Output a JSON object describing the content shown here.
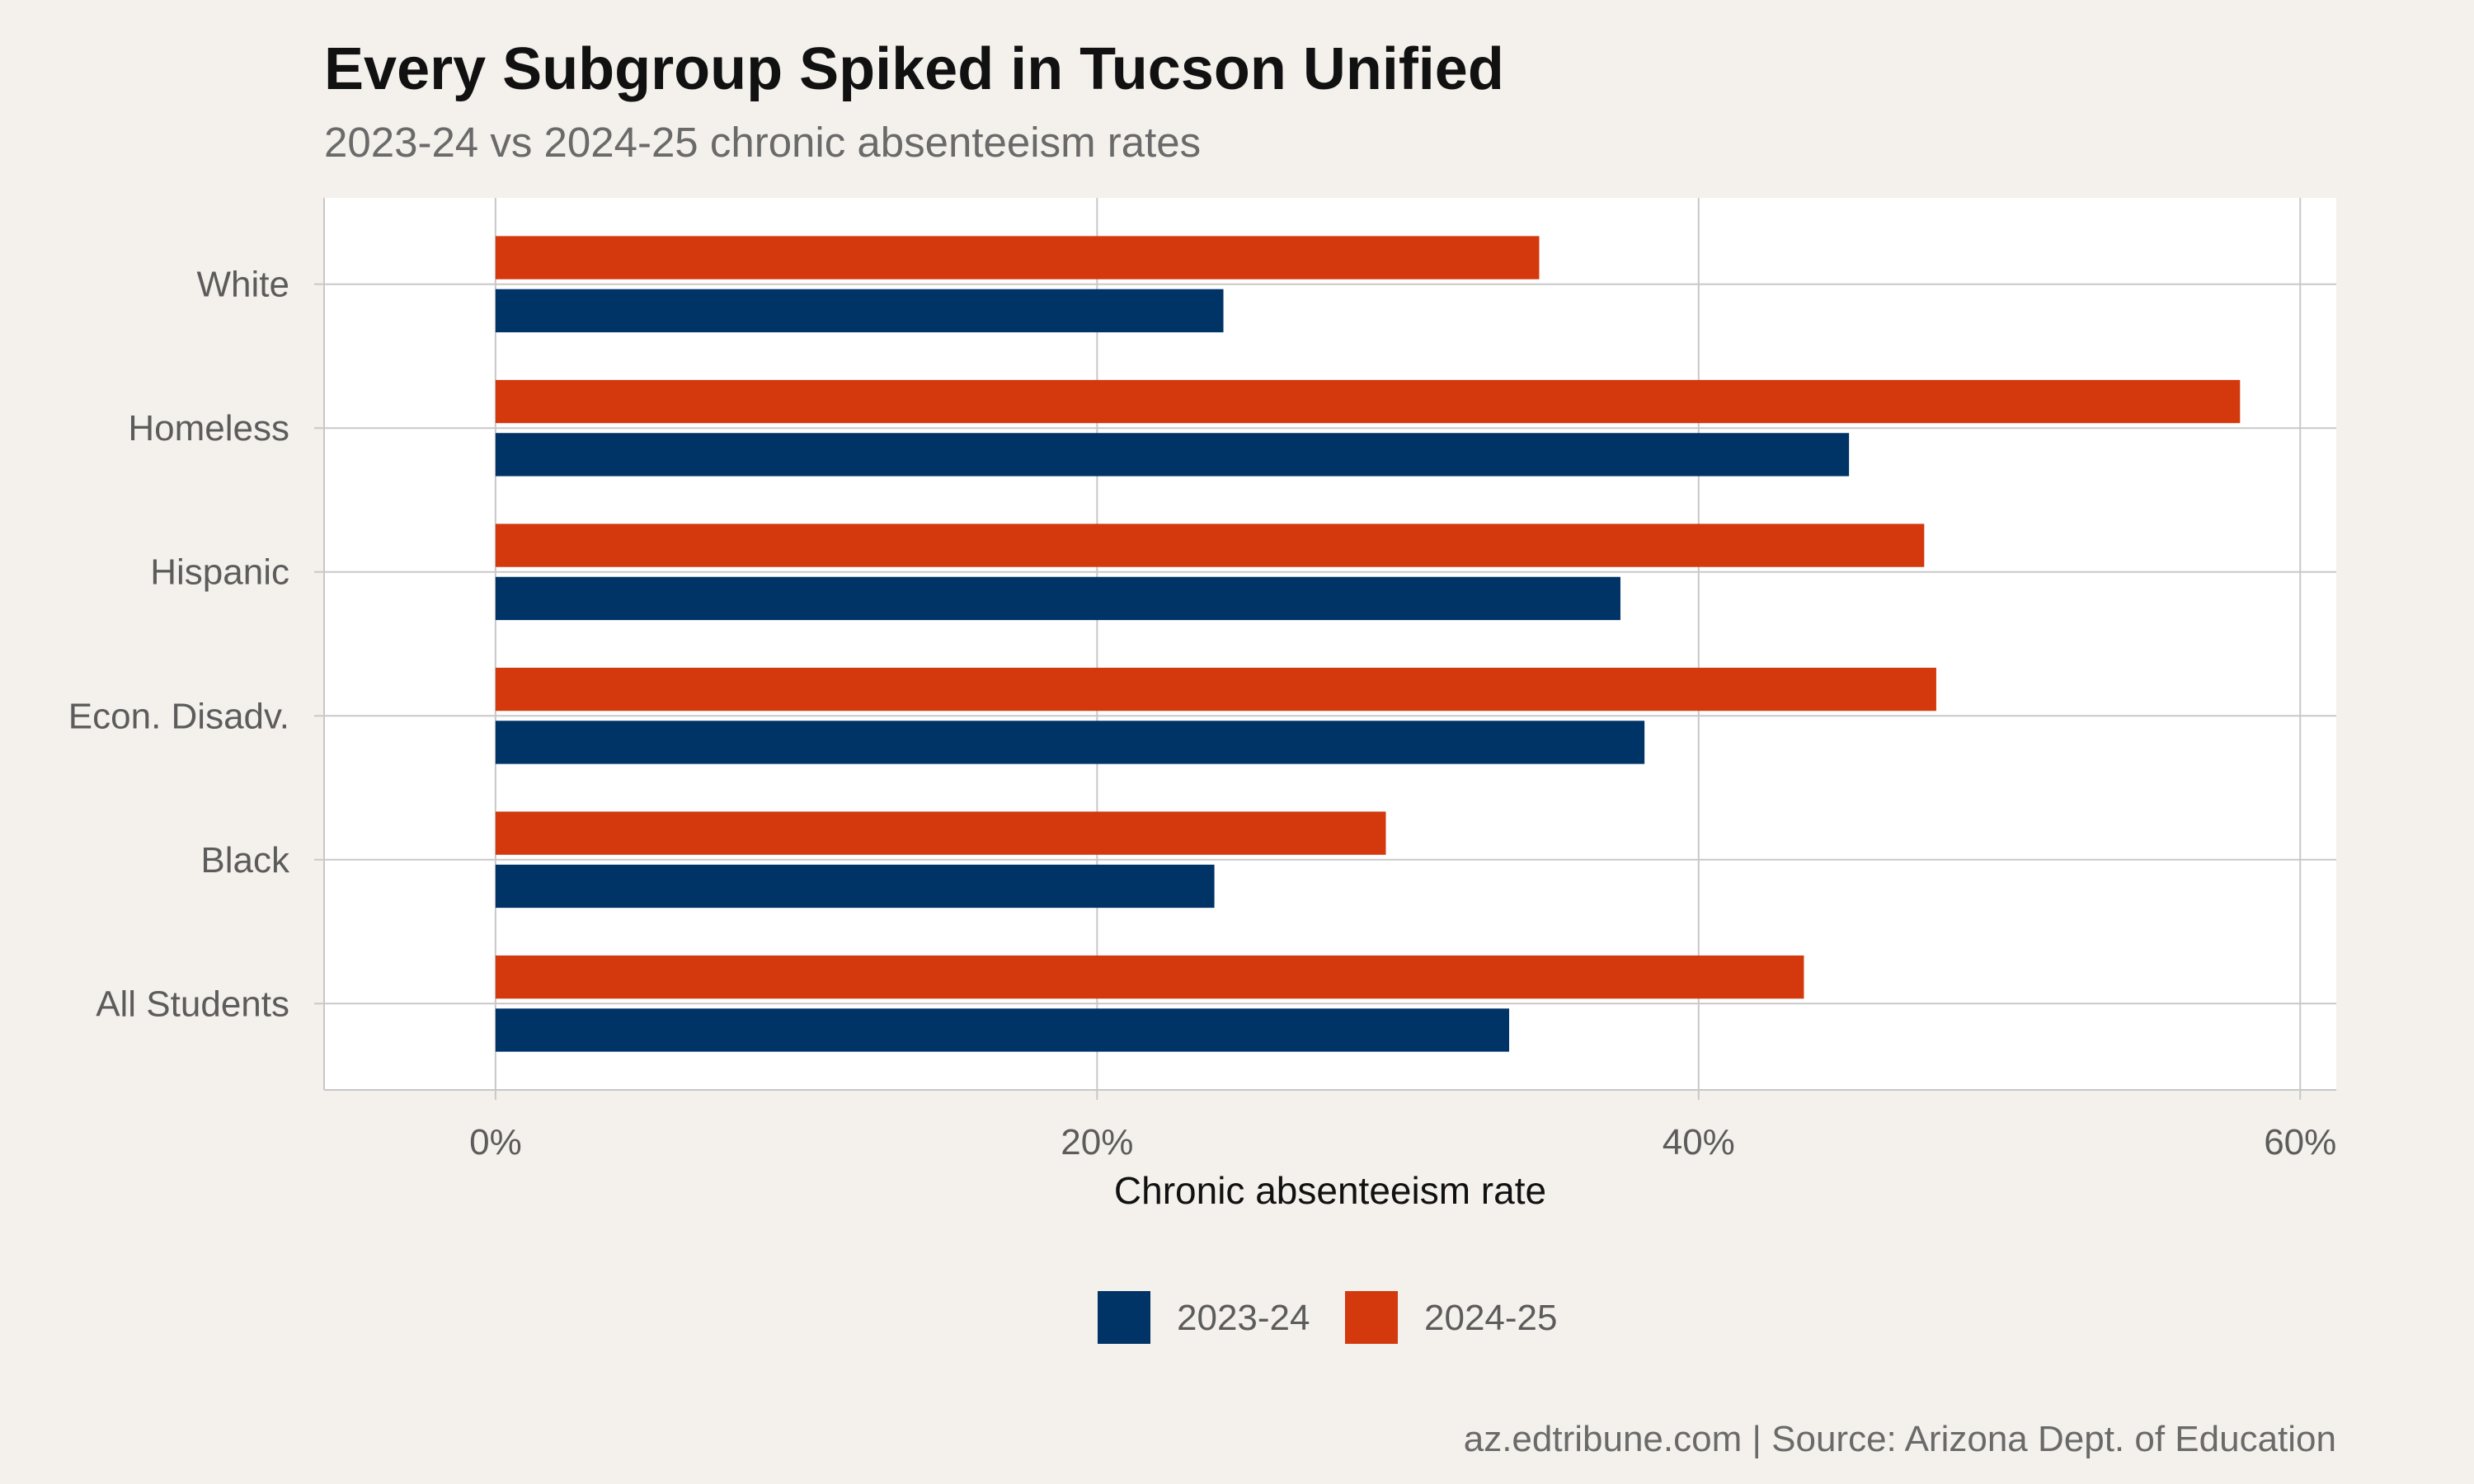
{
  "chart_data": {
    "type": "bar",
    "orientation": "horizontal",
    "title": "Every Subgroup Spiked in Tucson Unified",
    "subtitle": "2023-24 vs 2024-25 chronic absenteeism rates",
    "xlabel": "Chronic absenteeism rate",
    "ylabel": "",
    "xlim": [
      -0.057,
      0.612
    ],
    "x_ticks": [
      {
        "value": 0,
        "label": "0%"
      },
      {
        "value": 0.2,
        "label": "20%"
      },
      {
        "value": 0.4,
        "label": "40%"
      },
      {
        "value": 0.6,
        "label": "60%"
      }
    ],
    "categories": [
      "All Students",
      "Black",
      "Econ. Disadv.",
      "Hispanic",
      "Homeless",
      "White"
    ],
    "series": [
      {
        "name": "2023-24",
        "color": "#003366",
        "values": [
          0.337,
          0.239,
          0.382,
          0.374,
          0.45,
          0.242
        ]
      },
      {
        "name": "2024-25",
        "color": "#d4380d",
        "values": [
          0.435,
          0.296,
          0.479,
          0.475,
          0.58,
          0.347
        ]
      }
    ],
    "legend": {
      "position": "bottom"
    },
    "grid": true,
    "caption": "az.edtribune.com | Source: Arizona Dept. of Education"
  },
  "colors": {
    "background": "#f4f1ec",
    "panel": "#ffffff",
    "grid": "#c8c8c8"
  }
}
